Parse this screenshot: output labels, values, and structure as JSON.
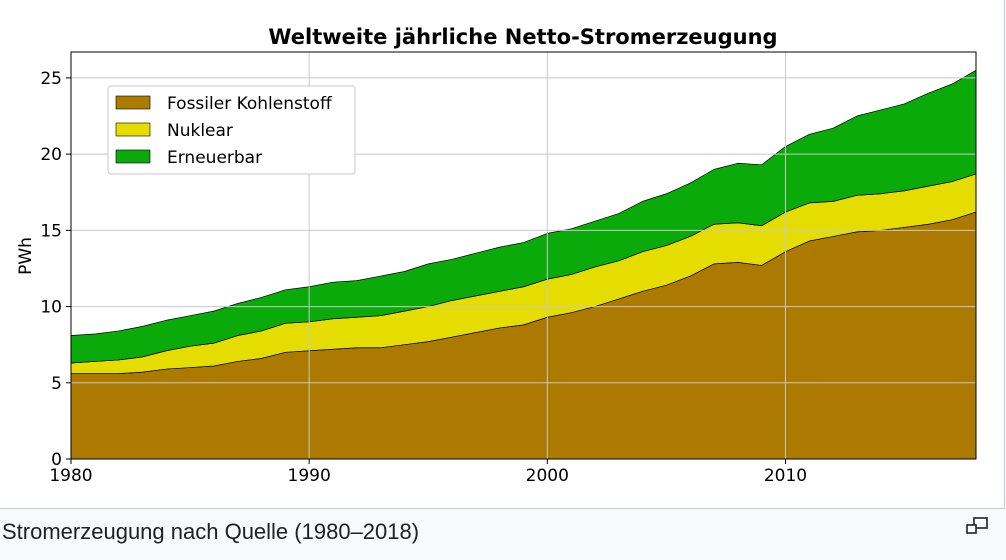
{
  "caption": "Stromerzeugung nach Quelle (1980–2018)",
  "enlarge_icon": "magnify-clip-icon",
  "colors": {
    "fossil": "#AD7A00",
    "nuclear": "#E6DD00",
    "renewable": "#0BAA0B",
    "grid": "#c8c8c8",
    "legend_border": "#c8c8c8"
  },
  "chart_data": {
    "type": "area",
    "stacked": true,
    "title": "Weltweite jährliche Netto-Stromerzeugung",
    "xlabel": "",
    "ylabel": "PWh",
    "xlim": [
      1980,
      2018
    ],
    "ylim": [
      0,
      26.7
    ],
    "xticks": [
      1980,
      1990,
      2000,
      2010
    ],
    "yticks": [
      0,
      5,
      10,
      15,
      20,
      25
    ],
    "grid": true,
    "legend_position": "top-left",
    "x": [
      1980,
      1981,
      1982,
      1983,
      1984,
      1985,
      1986,
      1987,
      1988,
      1989,
      1990,
      1991,
      1992,
      1993,
      1994,
      1995,
      1996,
      1997,
      1998,
      1999,
      2000,
      2001,
      2002,
      2003,
      2004,
      2005,
      2006,
      2007,
      2008,
      2009,
      2010,
      2011,
      2012,
      2013,
      2014,
      2015,
      2016,
      2017,
      2018
    ],
    "series": [
      {
        "name": "Fossiler Kohlenstoff",
        "color": "#AD7A00",
        "values": [
          5.6,
          5.6,
          5.6,
          5.7,
          5.9,
          6.0,
          6.1,
          6.4,
          6.6,
          7.0,
          7.1,
          7.2,
          7.3,
          7.3,
          7.5,
          7.7,
          8.0,
          8.3,
          8.6,
          8.8,
          9.3,
          9.6,
          10.0,
          10.5,
          11.0,
          11.4,
          12.0,
          12.8,
          12.9,
          12.7,
          13.6,
          14.3,
          14.6,
          14.9,
          15.0,
          15.2,
          15.4,
          15.7,
          16.2
        ]
      },
      {
        "name": "Nuklear",
        "color": "#E6DD00",
        "values": [
          0.7,
          0.8,
          0.9,
          1.0,
          1.2,
          1.4,
          1.5,
          1.7,
          1.8,
          1.9,
          1.9,
          2.0,
          2.0,
          2.1,
          2.2,
          2.3,
          2.4,
          2.4,
          2.4,
          2.5,
          2.5,
          2.5,
          2.6,
          2.5,
          2.6,
          2.6,
          2.6,
          2.6,
          2.6,
          2.6,
          2.6,
          2.5,
          2.3,
          2.4,
          2.4,
          2.4,
          2.5,
          2.5,
          2.5
        ]
      },
      {
        "name": "Erneuerbar",
        "color": "#0BAA0B",
        "values": [
          1.8,
          1.8,
          1.9,
          2.0,
          2.0,
          2.0,
          2.1,
          2.1,
          2.2,
          2.2,
          2.3,
          2.4,
          2.4,
          2.6,
          2.6,
          2.8,
          2.7,
          2.8,
          2.9,
          2.9,
          3.0,
          3.0,
          3.0,
          3.1,
          3.3,
          3.4,
          3.5,
          3.6,
          3.9,
          4.0,
          4.3,
          4.5,
          4.8,
          5.2,
          5.5,
          5.7,
          6.1,
          6.4,
          6.8
        ]
      }
    ]
  }
}
